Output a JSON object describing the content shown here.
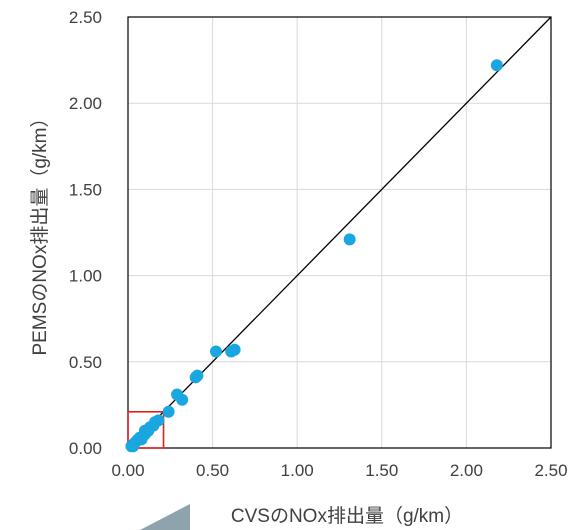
{
  "chart_data": {
    "type": "scatter",
    "xlabel": "CVSのNOx排出量（g/km）",
    "ylabel": "PEMSのNOx排出量（g/km）",
    "xlim": [
      0,
      2.5
    ],
    "ylim": [
      0,
      2.5
    ],
    "xticks": [
      "0.00",
      "0.50",
      "1.00",
      "1.50",
      "2.00",
      "2.50"
    ],
    "yticks": [
      "0.00",
      "0.50",
      "1.00",
      "1.50",
      "2.00",
      "2.50"
    ],
    "grid": true,
    "point_color": "#1aa7e0",
    "reference_line": {
      "label": "",
      "from": [
        0.03,
        0.03
      ],
      "to": [
        2.5,
        2.5
      ]
    },
    "highlight_box": {
      "x": [
        0,
        0.21
      ],
      "y": [
        0,
        0.21
      ],
      "color": "#e02020"
    },
    "series": [
      {
        "values": [
          [
            0.02,
            0.01
          ],
          [
            0.03,
            0.02
          ],
          [
            0.03,
            0.01
          ],
          [
            0.04,
            0.03
          ],
          [
            0.05,
            0.04
          ],
          [
            0.06,
            0.05
          ],
          [
            0.07,
            0.06
          ],
          [
            0.08,
            0.05
          ],
          [
            0.09,
            0.07
          ],
          [
            0.1,
            0.08
          ],
          [
            0.1,
            0.1
          ],
          [
            0.12,
            0.1
          ],
          [
            0.13,
            0.12
          ],
          [
            0.15,
            0.13
          ],
          [
            0.16,
            0.15
          ],
          [
            0.18,
            0.16
          ],
          [
            0.24,
            0.21
          ],
          [
            0.29,
            0.31
          ],
          [
            0.32,
            0.28
          ],
          [
            0.41,
            0.42
          ],
          [
            0.4,
            0.41
          ],
          [
            0.52,
            0.56
          ],
          [
            0.61,
            0.56
          ],
          [
            0.63,
            0.57
          ],
          [
            1.31,
            1.21
          ],
          [
            2.18,
            2.22
          ]
        ]
      }
    ]
  }
}
